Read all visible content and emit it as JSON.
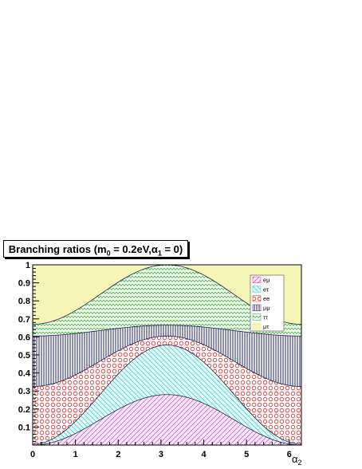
{
  "chart_data": {
    "type": "area",
    "title": "Branching ratios (m0 = 0.2eV,α1 = 0)",
    "title_parts": {
      "pre": "Branching ratios (m",
      "sub1": "0",
      "mid": " = 0.2eV,α",
      "sub2": "1",
      "post": " = 0)"
    },
    "xlabel": "α2",
    "xlabel_parts": {
      "base": "α",
      "sub": "2"
    },
    "ylabel": "",
    "xlim": [
      0,
      6.2832
    ],
    "ylim": [
      0,
      1
    ],
    "x_ticks": [
      0,
      1,
      2,
      3,
      4,
      5,
      6
    ],
    "x_tick_labels": [
      "0",
      "1",
      "2",
      "3",
      "4",
      "5",
      "6"
    ],
    "y_ticks": [
      0.1,
      0.2,
      0.3,
      0.4,
      0.5,
      0.6,
      0.7,
      0.8,
      0.9,
      1
    ],
    "y_tick_labels": [
      "0.1",
      "0.2",
      "0.3",
      "0.4",
      "0.5",
      "0.6",
      "0.7",
      "0.8",
      "0.9",
      "1"
    ],
    "stacked": true,
    "formula_note": "cumulative boundary = a - b*cos(x)",
    "series": [
      {
        "name": "eμ",
        "a": 0.14,
        "b": 0.14,
        "color": "#cc44cc",
        "pattern": "diag-right"
      },
      {
        "name": "eτ",
        "a": 0.28,
        "b": 0.275,
        "color": "#22cccc",
        "pattern": "diag-left"
      },
      {
        "name": "ee",
        "a": 0.465,
        "b": 0.14,
        "color": "#dd2222",
        "pattern": "circles"
      },
      {
        "name": "μμ",
        "a": 0.635,
        "b": 0.03,
        "color": "#222266",
        "pattern": "vertical"
      },
      {
        "name": "ττ",
        "a": 0.835,
        "b": 0.165,
        "color": "#22aa22",
        "pattern": "zigzag"
      },
      {
        "name": "μτ",
        "a": 1.0,
        "b": 0.0,
        "color": "#eeee88",
        "pattern": "solid"
      }
    ],
    "legend_placement": "top-right",
    "legend_labels": [
      "eμ",
      "eτ",
      "ee",
      "μμ",
      "ττ",
      "μτ"
    ]
  },
  "colors": {
    "axis": "#000000",
    "plot_background": "#ffffff"
  }
}
